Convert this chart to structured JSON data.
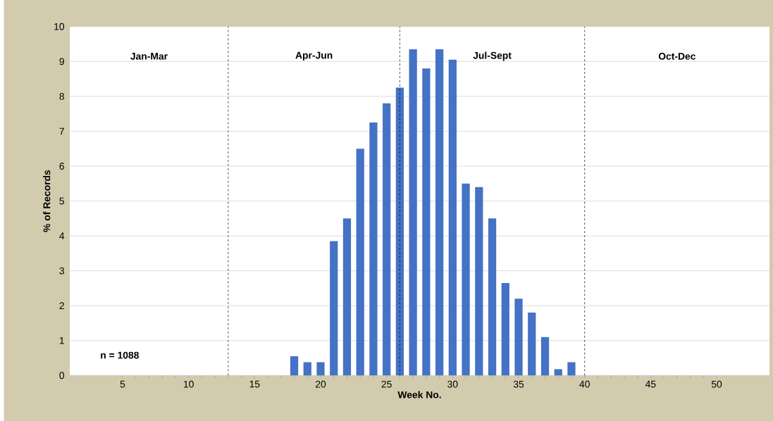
{
  "chart_data": {
    "type": "bar",
    "xlabel": "Week No.",
    "ylabel": "% of Records",
    "x": [
      18,
      19,
      20,
      21,
      22,
      23,
      24,
      25,
      26,
      27,
      28,
      29,
      30,
      31,
      32,
      33,
      34,
      35,
      36,
      37,
      38,
      39
    ],
    "values": [
      0.55,
      0.38,
      0.38,
      3.85,
      4.5,
      6.5,
      7.25,
      7.8,
      8.25,
      9.35,
      8.8,
      9.35,
      9.05,
      5.5,
      5.4,
      4.5,
      2.65,
      2.2,
      1.8,
      1.1,
      0.18,
      0.38
    ],
    "color": "#4472c4",
    "xlim": [
      1,
      54
    ],
    "xticks": [
      5,
      10,
      15,
      20,
      25,
      30,
      35,
      40,
      45,
      50
    ],
    "ylim": [
      0,
      10
    ],
    "yticks": [
      0,
      1,
      2,
      3,
      4,
      5,
      6,
      7,
      8,
      9,
      10
    ],
    "grid": "y",
    "ref_lines": [
      {
        "axis": "x",
        "value": 13,
        "color": "#000000",
        "line_style": "dashed"
      },
      {
        "axis": "x",
        "value": 26,
        "color": "#000000",
        "line_style": "dashed"
      },
      {
        "axis": "x",
        "value": 40,
        "color": "#000000",
        "line_style": "dashed"
      }
    ],
    "annotations": [
      "Jan-Mar",
      "Apr-Jun",
      "Jul-Sept",
      "Oct-Dec",
      "n = 1088"
    ]
  }
}
